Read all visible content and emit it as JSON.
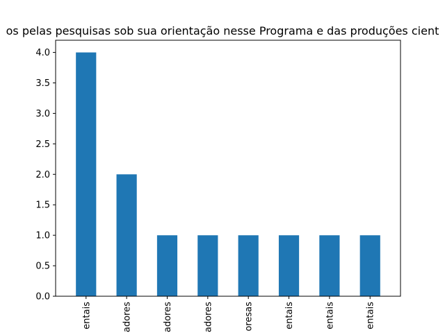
{
  "chart_data": {
    "type": "bar",
    "title": "os pelas pesquisas sob sua orientação nesse Programa e das produções cient",
    "xlabel": "",
    "ylabel": "",
    "categories": [
      "entais",
      "adores",
      "adores",
      "adores",
      "oresas",
      "entais",
      "entais",
      "entais"
    ],
    "values": [
      4,
      2,
      1,
      1,
      1,
      1,
      1,
      1
    ],
    "ylim": [
      0,
      4.2
    ],
    "yticks": [
      "0.0",
      "0.5",
      "1.0",
      "1.5",
      "2.0",
      "2.5",
      "3.0",
      "3.5",
      "4.0"
    ],
    "bar_color": "#1f77b4",
    "grid": false,
    "legend": "none"
  }
}
